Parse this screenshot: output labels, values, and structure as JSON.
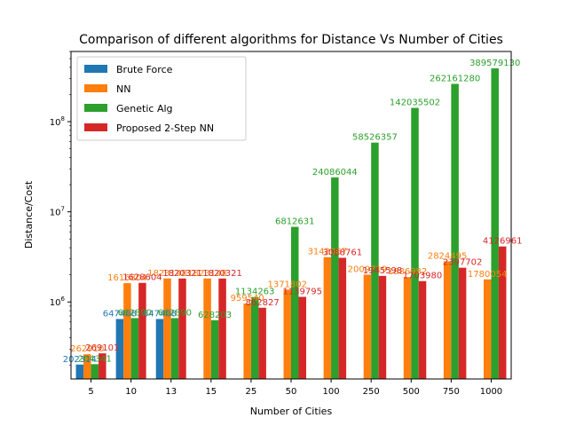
{
  "chart_data": {
    "type": "bar",
    "title": "Comparison of different algorithms for Distance Vs Number of Cities",
    "xlabel": "Number of Cities",
    "ylabel": "Distance/Cost",
    "yscale": "log",
    "ylim": [
      140000,
      600000000
    ],
    "grid": false,
    "legend_position": "top-left",
    "categories": [
      "5",
      "10",
      "13",
      "15",
      "25",
      "50",
      "100",
      "250",
      "500",
      "750",
      "1000"
    ],
    "y_ticks": [
      {
        "value": 1000000,
        "base": "10",
        "exp": "6"
      },
      {
        "value": 10000000,
        "base": "10",
        "exp": "7"
      },
      {
        "value": 100000000,
        "base": "10",
        "exp": "8"
      }
    ],
    "series": [
      {
        "name": "Brute Force",
        "color": "#1f77b4",
        "values": [
          202314,
          647408,
          647408,
          null,
          null,
          null,
          null,
          null,
          null,
          null,
          null
        ],
        "labels": [
          "202314",
          "647408",
          "647408",
          "",
          "",
          "",
          "",
          "",
          "",
          "",
          ""
        ]
      },
      {
        "name": "NN",
        "color": "#ff7f0e",
        "values": [
          262910,
          1616804,
          1823148,
          1823148,
          959540,
          1371802,
          3142067,
          2009719,
          1886982,
          2824495,
          1780054
        ],
        "labels": [
          "262910",
          "1616804",
          "1823148",
          "1823148",
          "959540",
          "1371802",
          "3142067",
          "2009719",
          "1886982",
          "2824495",
          "1780054"
        ]
      },
      {
        "name": "Genetic Alg",
        "color": "#2ca02c",
        "values": [
          204341,
          662890,
          662890,
          628203,
          1134263,
          6812631,
          24086044,
          58526357,
          142035502,
          262161280,
          389579130
        ],
        "labels": [
          "204341",
          "662890",
          "662890",
          "628203",
          "1134263",
          "6812631",
          "24086044",
          "58526357",
          "142035502",
          "262161280",
          "389579130"
        ]
      },
      {
        "name": "Proposed 2-Step NN",
        "color": "#d62728",
        "values": [
          269101,
          1628604,
          1820321,
          1820321,
          862827,
          1139795,
          3088761,
          1945598,
          1703980,
          2397702,
          4126961
        ],
        "labels": [
          "269101",
          "1628604",
          "1820321",
          "1820321",
          "862827",
          "1139795",
          "3088761",
          "1945598",
          "1703980",
          "2397702",
          "4126961"
        ]
      }
    ]
  }
}
